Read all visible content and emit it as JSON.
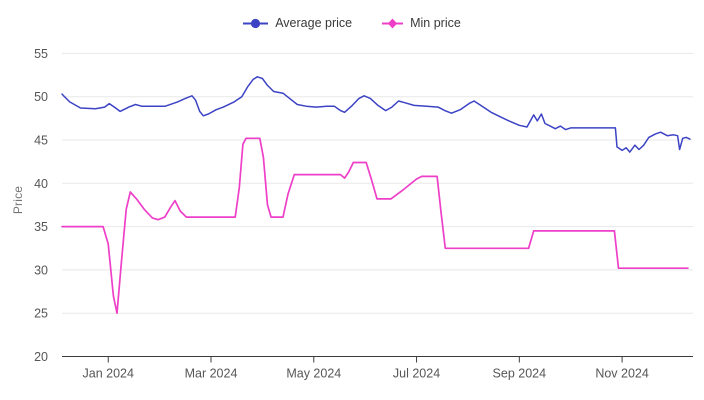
{
  "colors": {
    "average_line": "#3c43c4",
    "min_line": "#ee3fc8",
    "gridline": "#e8e8e8",
    "axis_line": "#3c3c3c",
    "tick_label": "#565656",
    "legend_text": "#3a3a3a",
    "axis_title": "#757575",
    "background": "#ffffff"
  },
  "legend": {
    "items": [
      {
        "label": "Average price",
        "marker": "circle"
      },
      {
        "label": "Min price",
        "marker": "diamond"
      }
    ]
  },
  "chart_data": {
    "type": "line",
    "title": "",
    "xlabel": "",
    "ylabel": "Price",
    "x_unit": "months since 2023-12-01",
    "xlim": [
      0.1,
      12.38
    ],
    "ylim": [
      20,
      55
    ],
    "grid": "horizontal-only",
    "legend_position": "top-center",
    "y_ticks": [
      20,
      25,
      30,
      35,
      40,
      45,
      50,
      55
    ],
    "x_ticks": [
      {
        "t": 1,
        "label": "Jan 2024"
      },
      {
        "t": 3,
        "label": "Mar 2024"
      },
      {
        "t": 5,
        "label": "May 2024"
      },
      {
        "t": 7,
        "label": "Jul 2024"
      },
      {
        "t": 9,
        "label": "Sep 2024"
      },
      {
        "t": 11,
        "label": "Nov 2024"
      }
    ],
    "series": [
      {
        "name": "Average price",
        "color": "#3c43c4",
        "points": [
          [
            0.1,
            50.3
          ],
          [
            0.25,
            49.4
          ],
          [
            0.46,
            48.7
          ],
          [
            0.75,
            48.6
          ],
          [
            0.93,
            48.8
          ],
          [
            1.02,
            49.2
          ],
          [
            1.12,
            48.8
          ],
          [
            1.23,
            48.3
          ],
          [
            1.4,
            48.8
          ],
          [
            1.53,
            49.1
          ],
          [
            1.65,
            48.9
          ],
          [
            1.9,
            48.9
          ],
          [
            2.11,
            48.9
          ],
          [
            2.35,
            49.4
          ],
          [
            2.5,
            49.8
          ],
          [
            2.63,
            50.1
          ],
          [
            2.7,
            49.6
          ],
          [
            2.78,
            48.3
          ],
          [
            2.85,
            47.8
          ],
          [
            2.95,
            48.0
          ],
          [
            3.1,
            48.5
          ],
          [
            3.24,
            48.8
          ],
          [
            3.45,
            49.4
          ],
          [
            3.6,
            50.0
          ],
          [
            3.72,
            51.2
          ],
          [
            3.82,
            52.0
          ],
          [
            3.9,
            52.3
          ],
          [
            4.0,
            52.1
          ],
          [
            4.1,
            51.3
          ],
          [
            4.22,
            50.6
          ],
          [
            4.4,
            50.4
          ],
          [
            4.55,
            49.7
          ],
          [
            4.68,
            49.1
          ],
          [
            4.85,
            48.9
          ],
          [
            5.05,
            48.8
          ],
          [
            5.25,
            48.9
          ],
          [
            5.4,
            48.9
          ],
          [
            5.52,
            48.4
          ],
          [
            5.6,
            48.2
          ],
          [
            5.75,
            49.0
          ],
          [
            5.88,
            49.8
          ],
          [
            5.98,
            50.1
          ],
          [
            6.1,
            49.8
          ],
          [
            6.25,
            49.0
          ],
          [
            6.4,
            48.4
          ],
          [
            6.52,
            48.8
          ],
          [
            6.65,
            49.5
          ],
          [
            6.78,
            49.3
          ],
          [
            6.95,
            49.0
          ],
          [
            7.2,
            48.9
          ],
          [
            7.42,
            48.8
          ],
          [
            7.55,
            48.4
          ],
          [
            7.68,
            48.1
          ],
          [
            7.85,
            48.5
          ],
          [
            8.02,
            49.2
          ],
          [
            8.12,
            49.5
          ],
          [
            8.3,
            48.8
          ],
          [
            8.45,
            48.2
          ],
          [
            8.62,
            47.7
          ],
          [
            8.8,
            47.2
          ],
          [
            9.0,
            46.7
          ],
          [
            9.15,
            46.5
          ],
          [
            9.28,
            47.9
          ],
          [
            9.35,
            47.2
          ],
          [
            9.43,
            48.0
          ],
          [
            9.5,
            46.9
          ],
          [
            9.6,
            46.6
          ],
          [
            9.7,
            46.3
          ],
          [
            9.8,
            46.6
          ],
          [
            9.9,
            46.2
          ],
          [
            10.0,
            46.4
          ],
          [
            10.2,
            46.4
          ],
          [
            10.5,
            46.4
          ],
          [
            10.87,
            46.4
          ],
          [
            10.9,
            44.2
          ],
          [
            11.0,
            43.8
          ],
          [
            11.08,
            44.1
          ],
          [
            11.15,
            43.6
          ],
          [
            11.25,
            44.4
          ],
          [
            11.33,
            43.9
          ],
          [
            11.42,
            44.4
          ],
          [
            11.52,
            45.3
          ],
          [
            11.65,
            45.7
          ],
          [
            11.75,
            45.9
          ],
          [
            11.88,
            45.5
          ],
          [
            12.0,
            45.6
          ],
          [
            12.08,
            45.5
          ],
          [
            12.12,
            43.9
          ],
          [
            12.18,
            45.2
          ],
          [
            12.25,
            45.3
          ],
          [
            12.32,
            45.1
          ]
        ]
      },
      {
        "name": "Min price",
        "color": "#ee3fc8",
        "points": [
          [
            0.1,
            35.0
          ],
          [
            0.9,
            35.0
          ],
          [
            1.0,
            33.0
          ],
          [
            1.1,
            27.0
          ],
          [
            1.17,
            25.0
          ],
          [
            1.25,
            30.5
          ],
          [
            1.35,
            37.0
          ],
          [
            1.43,
            39.0
          ],
          [
            1.55,
            38.2
          ],
          [
            1.7,
            37.0
          ],
          [
            1.86,
            36.0
          ],
          [
            1.97,
            35.8
          ],
          [
            2.1,
            36.1
          ],
          [
            2.22,
            37.3
          ],
          [
            2.3,
            38.0
          ],
          [
            2.4,
            36.8
          ],
          [
            2.52,
            36.1
          ],
          [
            2.8,
            36.1
          ],
          [
            3.2,
            36.1
          ],
          [
            3.47,
            36.1
          ],
          [
            3.55,
            39.5
          ],
          [
            3.62,
            44.5
          ],
          [
            3.68,
            45.2
          ],
          [
            3.95,
            45.2
          ],
          [
            4.02,
            43.0
          ],
          [
            4.1,
            37.5
          ],
          [
            4.17,
            36.1
          ],
          [
            4.4,
            36.1
          ],
          [
            4.5,
            38.8
          ],
          [
            4.62,
            41.0
          ],
          [
            5.0,
            41.0
          ],
          [
            5.4,
            41.0
          ],
          [
            5.52,
            41.0
          ],
          [
            5.6,
            40.6
          ],
          [
            5.68,
            41.3
          ],
          [
            5.77,
            42.4
          ],
          [
            6.02,
            42.4
          ],
          [
            6.12,
            40.5
          ],
          [
            6.23,
            38.2
          ],
          [
            6.5,
            38.2
          ],
          [
            6.75,
            39.3
          ],
          [
            7.0,
            40.5
          ],
          [
            7.1,
            40.8
          ],
          [
            7.4,
            40.8
          ],
          [
            7.48,
            36.5
          ],
          [
            7.56,
            32.5
          ],
          [
            8.5,
            32.5
          ],
          [
            9.18,
            32.5
          ],
          [
            9.28,
            34.5
          ],
          [
            10.0,
            34.5
          ],
          [
            10.85,
            34.5
          ],
          [
            10.93,
            30.2
          ],
          [
            11.5,
            30.2
          ],
          [
            12.28,
            30.2
          ]
        ]
      }
    ]
  }
}
